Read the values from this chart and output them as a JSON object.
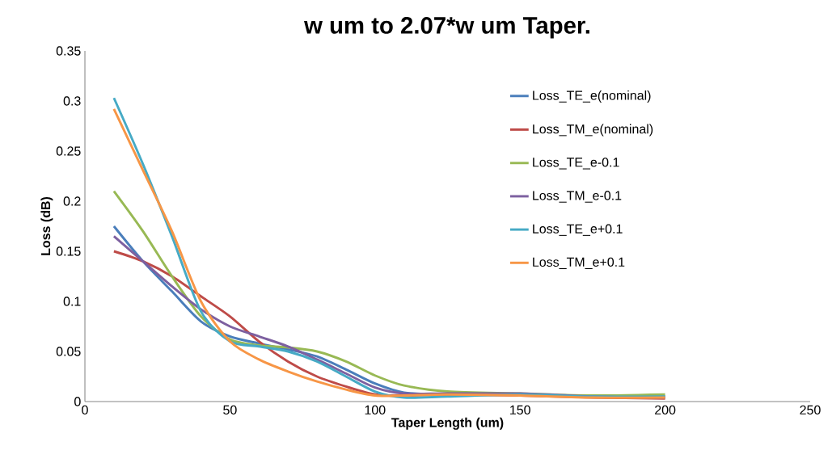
{
  "chart_data": {
    "type": "line",
    "title": "w um to 2.07*w um Taper.",
    "xlabel": "Taper Length (um)",
    "ylabel": "Loss (dB)",
    "x": [
      10,
      20,
      30,
      40,
      50,
      60,
      70,
      80,
      90,
      100,
      110,
      125,
      150,
      175,
      200
    ],
    "series": [
      {
        "name": "Loss_TE_e(nominal)",
        "color": "#4a7ebb",
        "values": [
          0.175,
          0.14,
          0.11,
          0.08,
          0.065,
          0.058,
          0.052,
          0.045,
          0.032,
          0.018,
          0.009,
          0.007,
          0.007,
          0.005,
          0.005
        ]
      },
      {
        "name": "Loss_TM_e(nominal)",
        "color": "#be4b48",
        "values": [
          0.15,
          0.14,
          0.125,
          0.105,
          0.085,
          0.06,
          0.04,
          0.025,
          0.015,
          0.007,
          0.006,
          0.007,
          0.006,
          0.004,
          0.003
        ]
      },
      {
        "name": "Loss_TE_e-0.1",
        "color": "#98b954",
        "values": [
          0.21,
          0.17,
          0.125,
          0.085,
          0.062,
          0.056,
          0.054,
          0.05,
          0.04,
          0.026,
          0.016,
          0.01,
          0.008,
          0.006,
          0.007
        ]
      },
      {
        "name": "Loss_TM_e-0.1",
        "color": "#7d60a0",
        "values": [
          0.165,
          0.14,
          0.115,
          0.092,
          0.075,
          0.065,
          0.055,
          0.042,
          0.028,
          0.014,
          0.008,
          0.008,
          0.008,
          0.005,
          0.004
        ]
      },
      {
        "name": "Loss_TE_e+0.1",
        "color": "#46aac5",
        "values": [
          0.303,
          0.237,
          0.165,
          0.09,
          0.06,
          0.055,
          0.05,
          0.04,
          0.025,
          0.01,
          0.004,
          0.005,
          0.007,
          0.005,
          0.005
        ]
      },
      {
        "name": "Loss_TM_e+0.1",
        "color": "#f79646",
        "values": [
          0.292,
          0.231,
          0.17,
          0.1,
          0.06,
          0.042,
          0.03,
          0.02,
          0.012,
          0.006,
          0.006,
          0.007,
          0.006,
          0.004,
          0.004
        ]
      }
    ],
    "xlim": [
      0,
      250
    ],
    "ylim": [
      0,
      0.35
    ],
    "xticks": [
      0,
      50,
      100,
      150,
      200,
      250
    ],
    "yticks": [
      0,
      0.05,
      0.1,
      0.15,
      0.2,
      0.25,
      0.3,
      0.35
    ],
    "grid": false,
    "legend": "top right",
    "marker": "none",
    "line_style": "solid"
  }
}
